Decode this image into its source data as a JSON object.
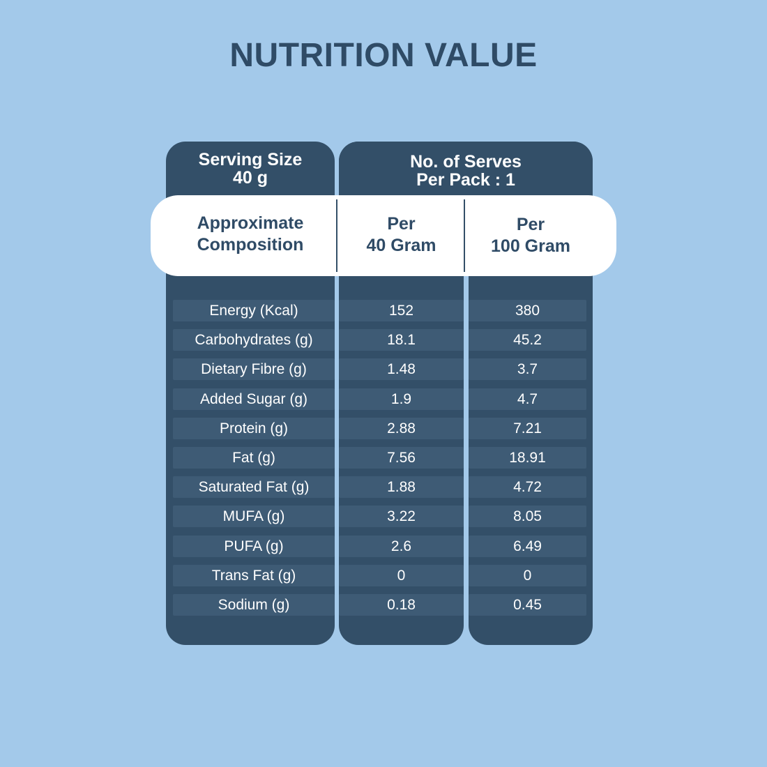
{
  "title": "NUTRITION VALUE",
  "header": {
    "serving_line1": "Serving Size",
    "serving_line2": "40 g",
    "serves_line1": "No. of Serves",
    "serves_line2": "Per Pack : 1"
  },
  "subheader": {
    "composition_line1": "Approximate",
    "composition_line2": "Composition",
    "per40_line1": "Per",
    "per40_line2": "40 Gram",
    "per100_line1": "Per",
    "per100_line2": "100 Gram"
  },
  "rows": [
    {
      "name": "Energy (Kcal)",
      "per40": "152",
      "per100": "380"
    },
    {
      "name": "Carbohydrates (g)",
      "per40": "18.1",
      "per100": "45.2"
    },
    {
      "name": "Dietary Fibre (g)",
      "per40": "1.48",
      "per100": "3.7"
    },
    {
      "name": "Added Sugar (g)",
      "per40": "1.9",
      "per100": "4.7"
    },
    {
      "name": "Protein (g)",
      "per40": "2.88",
      "per100": "7.21"
    },
    {
      "name": "Fat (g)",
      "per40": "7.56",
      "per100": "18.91"
    },
    {
      "name": "Saturated Fat (g)",
      "per40": "1.88",
      "per100": "4.72"
    },
    {
      "name": "MUFA (g)",
      "per40": "3.22",
      "per100": "8.05"
    },
    {
      "name": "PUFA (g)",
      "per40": "2.6",
      "per100": "6.49"
    },
    {
      "name": "Trans Fat (g)",
      "per40": "0",
      "per100": "0"
    },
    {
      "name": "Sodium (g)",
      "per40": "0.18",
      "per100": "0.45"
    }
  ],
  "colors": {
    "background": "#a3c9ea",
    "panel": "#334f68",
    "row": "#3e5b75",
    "title": "#2f4b66"
  }
}
